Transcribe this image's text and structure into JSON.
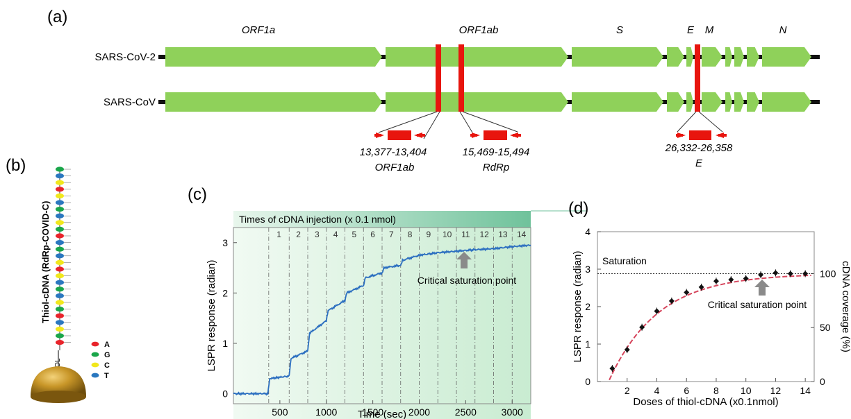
{
  "panel_labels": {
    "a": "(a)",
    "b": "(b)",
    "c": "(c)",
    "d": "(d)"
  },
  "panel_a": {
    "genome_labels": [
      "ORF1a",
      "ORF1ab",
      "S",
      "E",
      "M",
      "N"
    ],
    "strains": [
      "SARS-CoV-2",
      "SARS-CoV"
    ],
    "primers": [
      {
        "pos": "13,377-13,404",
        "gene": "ORF1ab"
      },
      {
        "pos": "15,469-15,494",
        "gene": "RdRp"
      },
      {
        "pos": "26,332-26,358",
        "gene": "E"
      }
    ]
  },
  "panel_b": {
    "strand_label": "Thiol-cDNA (RdRp-COVID-C)",
    "thiol_label": "THIOL",
    "legend": [
      {
        "base": "A",
        "color": "#e8242b"
      },
      {
        "base": "G",
        "color": "#1aa64a"
      },
      {
        "base": "C",
        "color": "#f1e71c"
      },
      {
        "base": "T",
        "color": "#2a77bf"
      }
    ]
  },
  "panel_c": {
    "header": "Times of cDNA injection (x 0.1 nmol)",
    "annotation": "Critical saturation point",
    "chart_data": {
      "type": "line",
      "xlabel": "Time (sec)",
      "ylabel": "LSPR response (radian)",
      "xlim": [
        0,
        3200
      ],
      "ylim": [
        -0.2,
        3.3
      ],
      "xticks": [
        500,
        1000,
        1500,
        2000,
        2500,
        3000
      ],
      "yticks": [
        0,
        1,
        2,
        3
      ],
      "injections": [
        "1",
        "2",
        "3",
        "4",
        "5",
        "6",
        "7",
        "8",
        "9",
        "10",
        "11",
        "12",
        "13",
        "14"
      ],
      "injection_times": [
        380,
        600,
        800,
        1000,
        1200,
        1400,
        1600,
        1800,
        2000,
        2200,
        2400,
        2600,
        2800,
        3000
      ],
      "x": [
        0,
        370,
        390,
        600,
        620,
        800,
        820,
        1000,
        1020,
        1200,
        1220,
        1400,
        1420,
        1600,
        1620,
        1800,
        1820,
        2000,
        2200,
        2400,
        2600,
        2800,
        3000,
        3200
      ],
      "y": [
        0.0,
        0.0,
        0.3,
        0.35,
        0.7,
        0.85,
        1.2,
        1.45,
        1.65,
        1.85,
        2.0,
        2.15,
        2.3,
        2.4,
        2.5,
        2.55,
        2.65,
        2.75,
        2.8,
        2.83,
        2.86,
        2.88,
        2.92,
        2.95
      ]
    }
  },
  "panel_d": {
    "saturation_label": "Saturation",
    "annotation": "Critical saturation point",
    "chart_data": {
      "type": "scatter",
      "xlabel": "Doses of thiol-cDNA (x0.1nmol)",
      "ylabel": "LSPR response (radian)",
      "y2label": "cDNA coverage (%)",
      "xlim": [
        0,
        14.6
      ],
      "ylim": [
        0,
        4
      ],
      "xticks": [
        2,
        4,
        6,
        8,
        10,
        12,
        14
      ],
      "yticks": [
        0,
        1,
        2,
        3,
        4
      ],
      "y2ticks": [
        0,
        50,
        100
      ],
      "saturation_y": 2.88,
      "x": [
        1,
        2,
        3,
        4,
        5,
        6,
        7,
        8,
        9,
        10,
        11,
        12,
        13,
        14
      ],
      "y": [
        0.35,
        0.85,
        1.45,
        1.88,
        2.15,
        2.38,
        2.52,
        2.68,
        2.72,
        2.75,
        2.85,
        2.9,
        2.88,
        2.88
      ]
    }
  }
}
